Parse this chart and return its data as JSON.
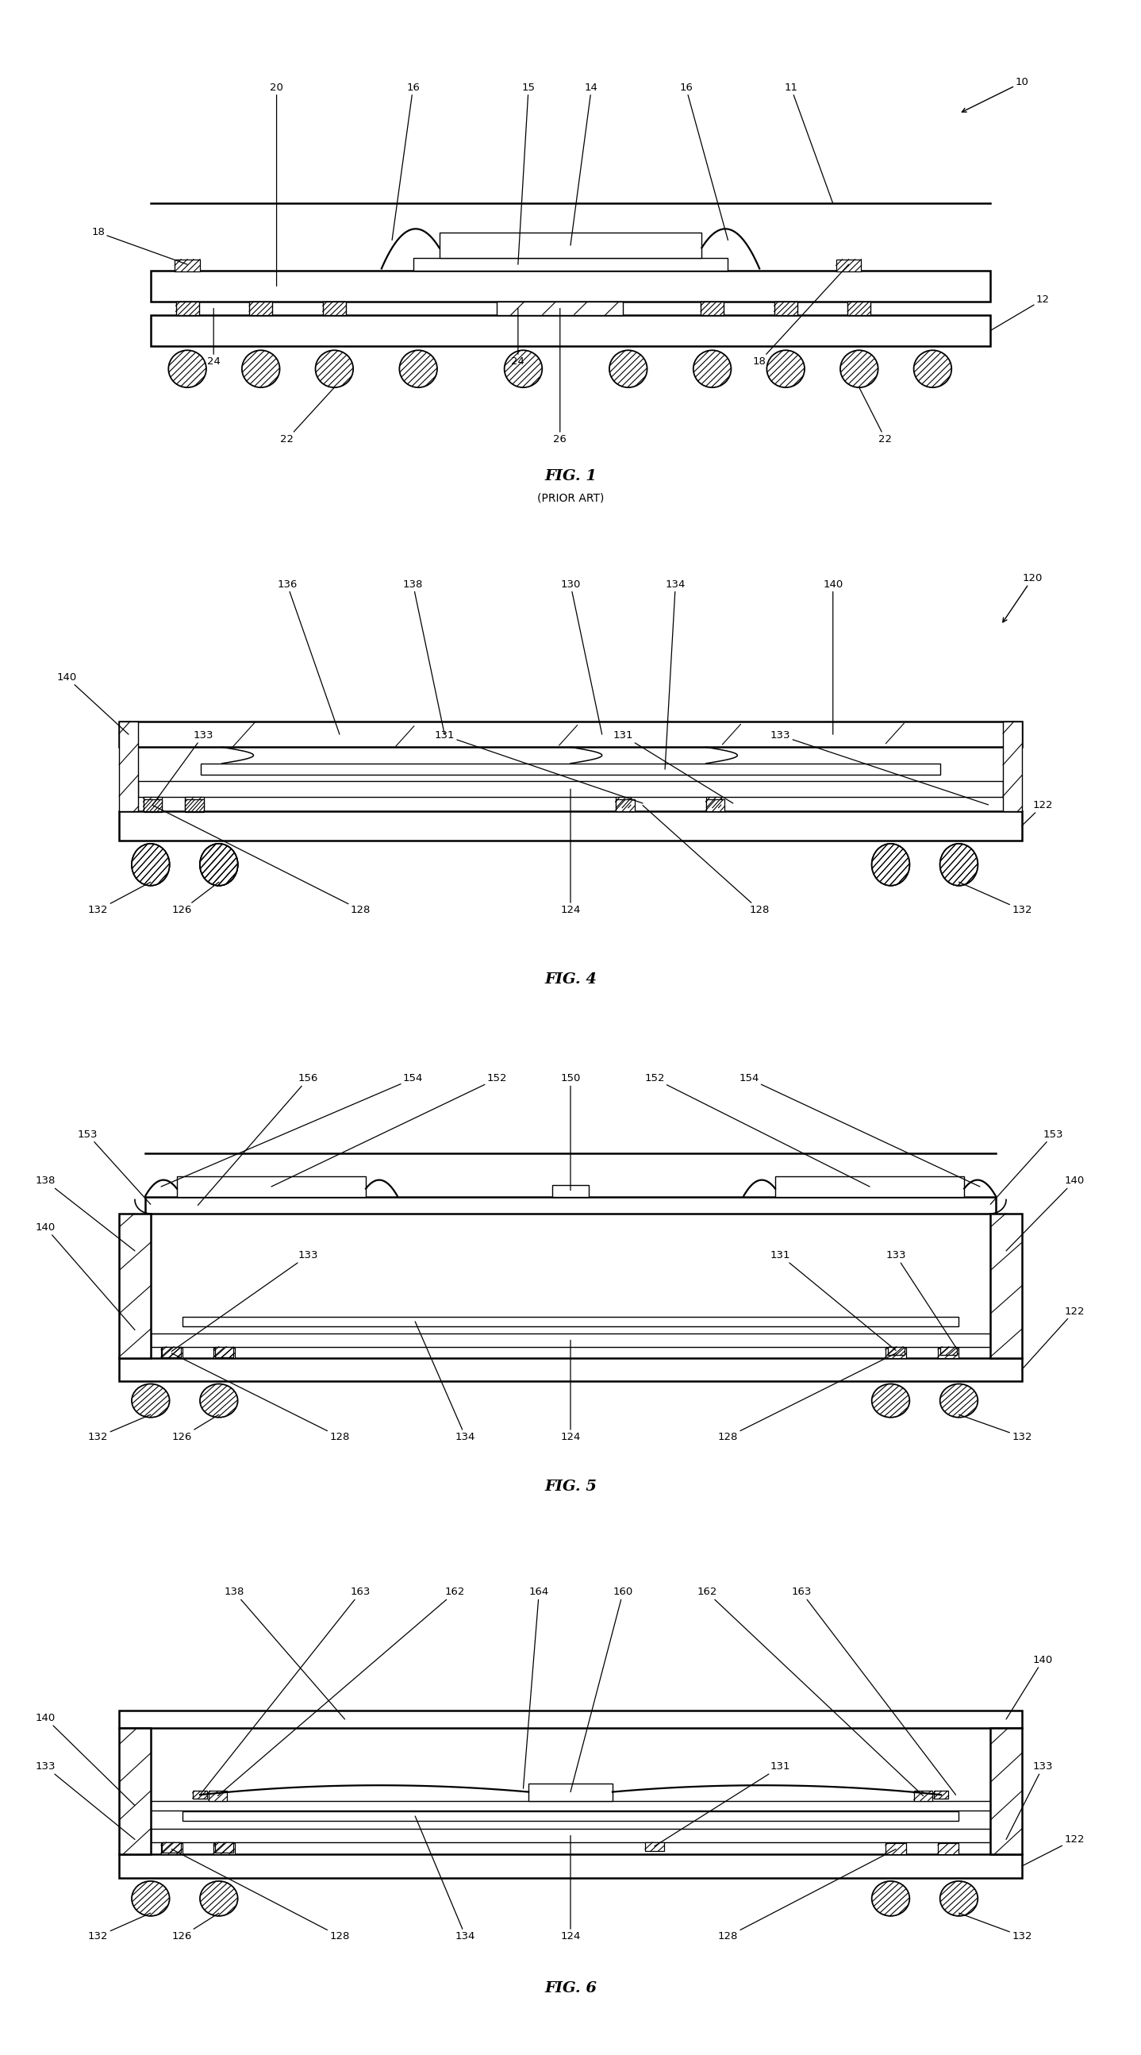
{
  "bg_color": "#ffffff",
  "lw_main": 1.8,
  "lw_thin": 1.0,
  "ball_r": 0.18,
  "fig_width": 14.38,
  "fig_height": 25.89,
  "figs": [
    "FIG. 1",
    "FIG. 4",
    "FIG. 5",
    "FIG. 6"
  ],
  "fig1_subtitle": "(PRIOR ART)"
}
